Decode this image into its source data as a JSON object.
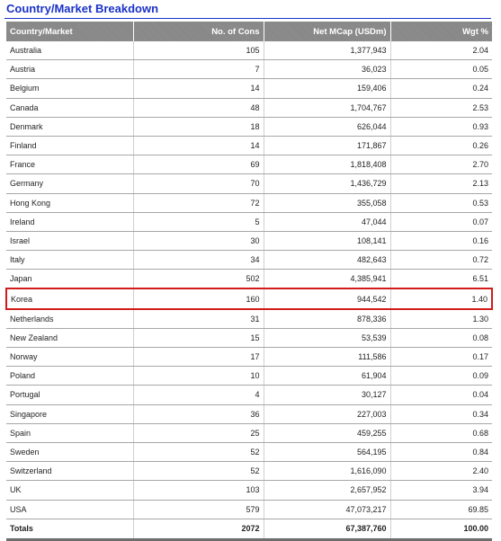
{
  "title": "Country/Market Breakdown",
  "headers": [
    "Country/Market",
    "No. of Cons",
    "Net MCap (USDm)",
    "Wgt %"
  ],
  "rows": [
    [
      "Australia",
      "105",
      "1,377,943",
      "2.04"
    ],
    [
      "Austria",
      "7",
      "36,023",
      "0.05"
    ],
    [
      "Belgium",
      "14",
      "159,406",
      "0.24"
    ],
    [
      "Canada",
      "48",
      "1,704,767",
      "2.53"
    ],
    [
      "Denmark",
      "18",
      "626,044",
      "0.93"
    ],
    [
      "Finland",
      "14",
      "171,867",
      "0.26"
    ],
    [
      "France",
      "69",
      "1,818,408",
      "2.70"
    ],
    [
      "Germany",
      "70",
      "1,436,729",
      "2.13"
    ],
    [
      "Hong Kong",
      "72",
      "355,058",
      "0.53"
    ],
    [
      "Ireland",
      "5",
      "47,044",
      "0.07"
    ],
    [
      "Israel",
      "30",
      "108,141",
      "0.16"
    ],
    [
      "Italy",
      "34",
      "482,643",
      "0.72"
    ],
    [
      "Japan",
      "502",
      "4,385,941",
      "6.51"
    ],
    [
      "Korea",
      "160",
      "944,542",
      "1.40"
    ],
    [
      "Netherlands",
      "31",
      "878,336",
      "1.30"
    ],
    [
      "New Zealand",
      "15",
      "53,539",
      "0.08"
    ],
    [
      "Norway",
      "17",
      "111,586",
      "0.17"
    ],
    [
      "Poland",
      "10",
      "61,904",
      "0.09"
    ],
    [
      "Portugal",
      "4",
      "30,127",
      "0.04"
    ],
    [
      "Singapore",
      "36",
      "227,003",
      "0.34"
    ],
    [
      "Spain",
      "25",
      "459,255",
      "0.68"
    ],
    [
      "Sweden",
      "52",
      "564,195",
      "0.84"
    ],
    [
      "Switzerland",
      "52",
      "1,616,090",
      "2.40"
    ],
    [
      "UK",
      "103",
      "2,657,952",
      "3.94"
    ],
    [
      "USA",
      "579",
      "47,073,217",
      "69.85"
    ]
  ],
  "highlighted_row": "Korea",
  "highlight_color": "#d21b1b",
  "totals": [
    "Totals",
    "2072",
    "67,387,760",
    "100.00"
  ],
  "colors": {
    "title": "#1a32c8",
    "header_bg": "#8a8a8a",
    "header_text": "#ffffff"
  }
}
